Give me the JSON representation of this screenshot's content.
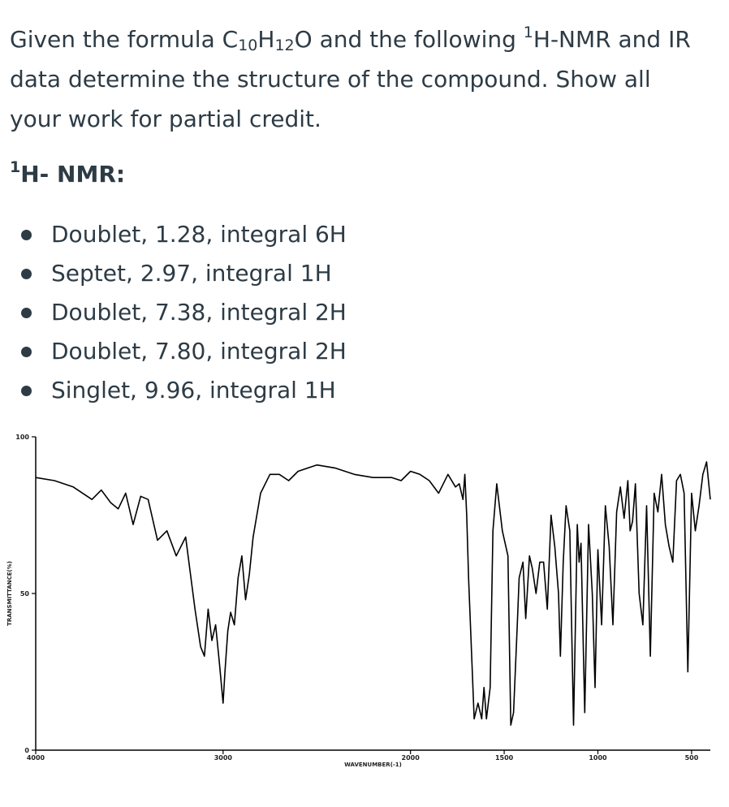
{
  "question": {
    "part1": "Given the formula C",
    "sub1": "10",
    "part2": "H",
    "sub2": "12",
    "part3": "O and the following ",
    "sup1": "1",
    "part4": "H-NMR and IR data determine the structure of the compound. Show all your work for partial credit."
  },
  "nmr_heading": {
    "sup": "1",
    "text": "H- NMR:"
  },
  "nmr_items": [
    "Doublet, 1.28, integral 6H",
    "Septet, 2.97, integral 1H",
    "Doublet, 7.38, integral 2H",
    "Doublet, 7.80, integral 2H",
    "Singlet, 9.96, integral 1H"
  ],
  "chart_data": {
    "type": "line",
    "xlabel": "WAVENUMBER(-1)",
    "ylabel": "TRANSMITTANCE(%)",
    "xlim": [
      4000,
      400
    ],
    "ylim": [
      0,
      100
    ],
    "xticks": [
      4000,
      3000,
      2000,
      1500,
      1000,
      500
    ],
    "xtick_labels": [
      "4000",
      "3000",
      "2000",
      "1500",
      "1000",
      "500"
    ],
    "yticks": [
      0,
      50,
      100
    ],
    "ytick_labels": [
      "0",
      "50",
      "100"
    ],
    "series": [
      {
        "x": [
          4000,
          3900,
          3800,
          3700,
          3650,
          3600,
          3560,
          3520,
          3480,
          3440,
          3400,
          3350,
          3300,
          3250,
          3200,
          3150,
          3120,
          3100,
          3080,
          3060,
          3040,
          3020,
          3000,
          2990,
          2975,
          2960,
          2940,
          2920,
          2900,
          2880,
          2870,
          2860,
          2840,
          2800,
          2750,
          2700,
          2650,
          2600,
          2500,
          2400,
          2300,
          2200,
          2100,
          2050,
          2000,
          1950,
          1900,
          1850,
          1800,
          1760,
          1740,
          1720,
          1710,
          1700,
          1690,
          1680,
          1660,
          1640,
          1620,
          1608,
          1595,
          1575,
          1560,
          1540,
          1510,
          1480,
          1465,
          1450,
          1430,
          1420,
          1400,
          1385,
          1365,
          1350,
          1330,
          1310,
          1290,
          1270,
          1250,
          1230,
          1210,
          1200,
          1185,
          1170,
          1150,
          1130,
          1110,
          1100,
          1090,
          1070,
          1050,
          1030,
          1015,
          1000,
          980,
          960,
          940,
          920,
          900,
          880,
          860,
          840,
          828,
          815,
          800,
          780,
          760,
          740,
          720,
          700,
          680,
          660,
          640,
          620,
          600,
          580,
          560,
          540,
          520,
          500,
          480,
          460,
          440,
          420,
          400
        ],
        "y": [
          87,
          86,
          84,
          80,
          83,
          79,
          77,
          82,
          72,
          81,
          80,
          67,
          70,
          62,
          68,
          45,
          33,
          30,
          45,
          35,
          40,
          28,
          15,
          25,
          38,
          44,
          40,
          55,
          62,
          48,
          52,
          56,
          68,
          82,
          88,
          88,
          86,
          89,
          91,
          90,
          88,
          87,
          87,
          86,
          89,
          88,
          86,
          82,
          88,
          84,
          85,
          80,
          88,
          75,
          55,
          40,
          10,
          15,
          10,
          20,
          10,
          20,
          70,
          85,
          70,
          62,
          8,
          12,
          40,
          55,
          60,
          42,
          62,
          58,
          50,
          60,
          60,
          45,
          75,
          65,
          50,
          30,
          60,
          78,
          70,
          8,
          72,
          60,
          66,
          12,
          72,
          50,
          20,
          64,
          40,
          78,
          65,
          40,
          76,
          84,
          74,
          86,
          70,
          73,
          85,
          50,
          40,
          78,
          30,
          82,
          76,
          88,
          72,
          65,
          60,
          86,
          88,
          82,
          25,
          82,
          70,
          78,
          88,
          92,
          80
        ]
      }
    ]
  }
}
